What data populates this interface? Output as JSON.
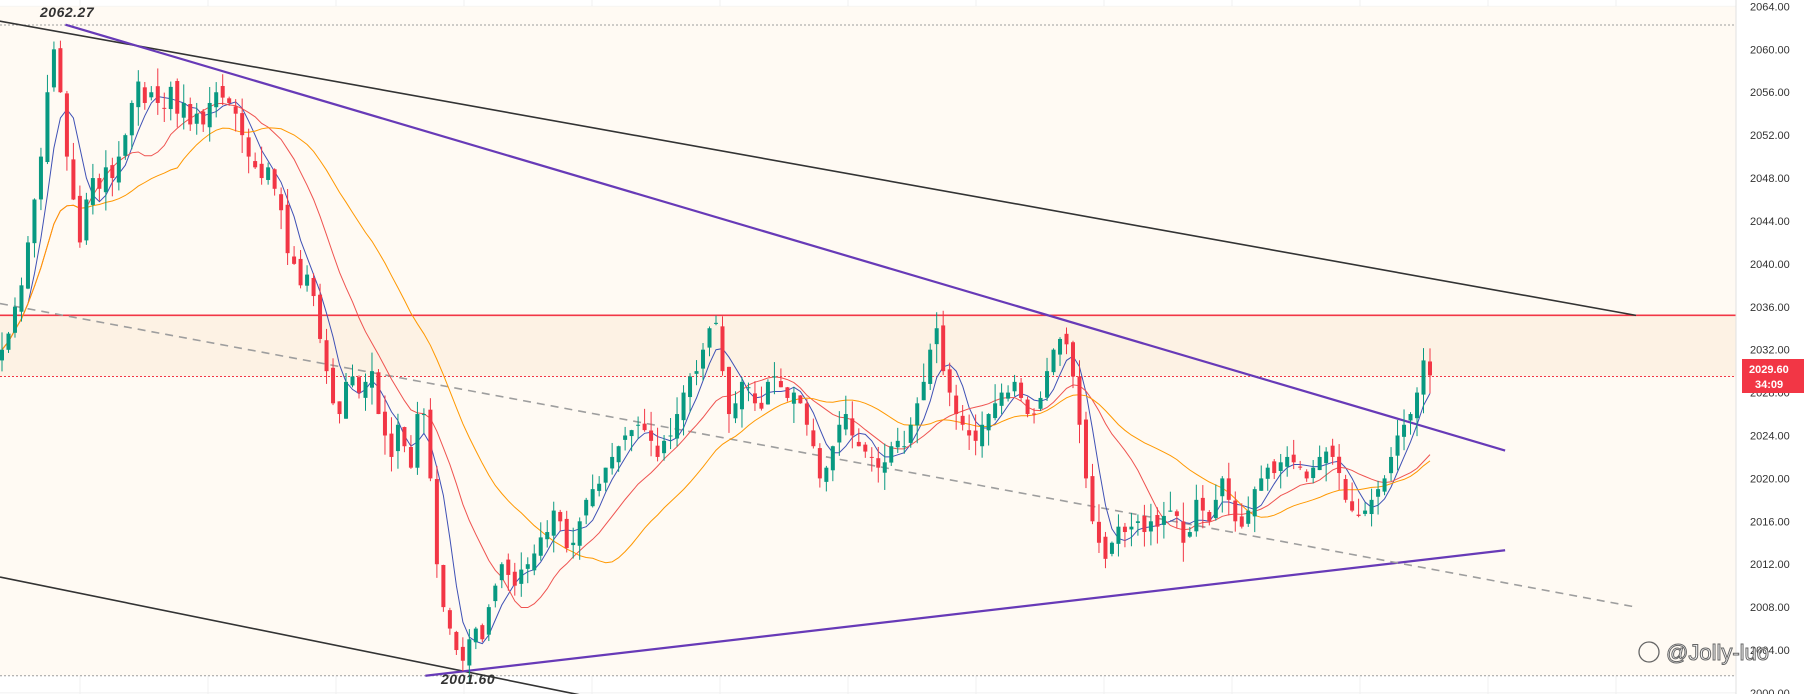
{
  "chart_data": {
    "type": "candlestick",
    "y_axis": {
      "ticks": [
        "2064.00",
        "2060.00",
        "2056.00",
        "2052.00",
        "2048.00",
        "2044.00",
        "2040.00",
        "2036.00",
        "2032.00",
        "2028.00",
        "2024.00",
        "2020.00",
        "2016.00",
        "2012.00",
        "2008.00",
        "2004.00",
        "2000.00"
      ],
      "range": [
        1999.9,
        2064.6
      ],
      "position": "right"
    },
    "current_price": {
      "value": "2029.60",
      "countdown": "34:09",
      "color": "#f23645"
    },
    "extremes": {
      "high": {
        "value": 2062.27,
        "label": "2062.27",
        "bar_index": 0.15
      },
      "low": {
        "value": 2001.6,
        "label": "2001.60",
        "bar_index": 0.5
      }
    },
    "horizontal_levels": [
      {
        "price": 2035.2,
        "color": "#f23645",
        "style": "solid"
      },
      {
        "price": 2029.5,
        "color": "#f23645",
        "style": "dotted"
      },
      {
        "price": 2062.27,
        "color": "#9e9e9e",
        "style": "dotted"
      },
      {
        "price": 2001.6,
        "color": "#9e9e9e",
        "style": "dotted"
      }
    ],
    "highlight_zone": {
      "top": 2035.2,
      "bottom": 2029.5,
      "color": "#fdf2e4"
    },
    "trendlines": [
      {
        "name": "channel-top",
        "from": [
          -0.05,
          2064.0
        ],
        "to": [
          1.0,
          2035.2
        ],
        "color": "#333333",
        "style": "solid"
      },
      {
        "name": "channel-bottom",
        "from": [
          0.0,
          2010.8
        ],
        "to": [
          0.355,
          1999.8
        ],
        "color": "#333333",
        "style": "solid"
      },
      {
        "name": "triangle-top",
        "from": [
          0.04,
          2062.3
        ],
        "to": [
          0.92,
          2022.6
        ],
        "color": "#673ab7",
        "style": "solid"
      },
      {
        "name": "triangle-bottom",
        "from": [
          0.26,
          2001.6
        ],
        "to": [
          0.92,
          2013.3
        ],
        "color": "#673ab7",
        "style": "solid"
      },
      {
        "name": "mid-line",
        "from": [
          0.0,
          2036.3
        ],
        "to": [
          1.0,
          2008.0
        ],
        "color": "#9e9e9e",
        "style": "dashed"
      }
    ],
    "colors": {
      "up": "#089981",
      "down": "#f23645",
      "ma_fast": "#3f51b5",
      "ma_mid": "#ef5350",
      "ma_slow": "#ff9800",
      "zone_bg": "#fffaf3"
    },
    "closes": [
      2032.0,
      2033.5,
      2036.0,
      2038.0,
      2042.0,
      2046.0,
      2050.0,
      2056.0,
      2060.0,
      2056.0,
      2050.0,
      2046.0,
      2042.0,
      2046.0,
      2048.0,
      2047.0,
      2049.0,
      2048.0,
      2050.0,
      2052.0,
      2055.0,
      2057.0,
      2055.0,
      2056.0,
      2055.0,
      2054.5,
      2056.5,
      2054.0,
      2055.0,
      2053.0,
      2054.0,
      2053.0,
      2055.0,
      2056.0,
      2055.5,
      2055.0,
      2054.0,
      2052.0,
      2050.0,
      2049.0,
      2048.0,
      2049.0,
      2047.0,
      2045.0,
      2041.0,
      2040.0,
      2038.0,
      2039.0,
      2037.0,
      2033.0,
      2030.0,
      2027.0,
      2026.0,
      2029.0,
      2029.5,
      2028.0,
      2029.0,
      2030.0,
      2026.0,
      2024.0,
      2022.0,
      2025.0,
      2023.0,
      2021.0,
      2026.0,
      2026.0,
      2020.0,
      2012.0,
      2008.0,
      2006.0,
      2004.0,
      2003.0,
      2005.0,
      2006.0,
      2005.0,
      2008.0,
      2010.0,
      2012.0,
      2011.0,
      2010.0,
      2011.5,
      2012.0,
      2013.0,
      2014.5,
      2015.0,
      2017.0,
      2016.0,
      2013.5,
      2014.0,
      2016.0,
      2018.0,
      2019.0,
      2019.5,
      2021.0,
      2022.0,
      2023.0,
      2024.0,
      2024.5,
      2025.0,
      2024.5,
      2023.5,
      2022.0,
      2023.5,
      2024.0,
      2026.0,
      2028.0,
      2029.5,
      2030.0,
      2032.0,
      2034.0,
      2034.5,
      2030.0,
      2026.0,
      2027.0,
      2029.0,
      2028.5,
      2027.0,
      2026.5,
      2029.0,
      2029.5,
      2028.5,
      2027.5,
      2028.0,
      2027.0,
      2025.0,
      2023.0,
      2020.0,
      2021.0,
      2023.0,
      2025.0,
      2026.0,
      2024.0,
      2023.0,
      2022.5,
      2022.0,
      2021.0,
      2021.5,
      2023.0,
      2023.5,
      2023.0,
      2025.0,
      2027.0,
      2029.0,
      2032.0,
      2034.0,
      2030.0,
      2028.0,
      2026.0,
      2025.0,
      2024.0,
      2023.5,
      2025.0,
      2026.0,
      2027.0,
      2028.0,
      2028.0,
      2029.0,
      2027.5,
      2026.0,
      2026.0,
      2027.5,
      2030.0,
      2032.0,
      2033.0,
      2032.5,
      2029.5,
      2025.0,
      2020.0,
      2016.0,
      2014.0,
      2012.5,
      2014.0,
      2015.5,
      2015.0,
      2015.5,
      2016.0,
      2015.0,
      2016.0,
      2015.5,
      2016.5,
      2017.0,
      2016.5,
      2014.0,
      2015.0,
      2018.0,
      2017.0,
      2016.0,
      2018.0,
      2020.0,
      2018.0,
      2016.0,
      2015.5,
      2017.0,
      2019.0,
      2020.0,
      2021.0,
      2020.5,
      2021.5,
      2022.0,
      2021.5,
      2021.0,
      2020.0,
      2021.0,
      2022.0,
      2022.5,
      2022.0,
      2020.5,
      2018.0,
      2017.0,
      2016.5,
      2017.0,
      2018.0,
      2019.0,
      2020.0,
      2022.0,
      2024.0,
      2025.0,
      2026.0,
      2028.0,
      2031.0,
      2029.6
    ]
  },
  "annotations": {
    "high_label": "2062.27",
    "low_label": "2001.60",
    "watermark": "@Jolly-luo",
    "price_tag_value": "2029.60",
    "price_tag_countdown": "34:09"
  }
}
